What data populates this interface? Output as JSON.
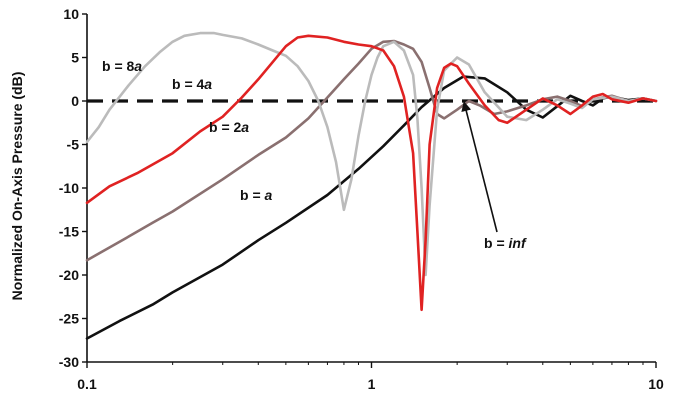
{
  "chart_data": {
    "type": "line",
    "title": "",
    "xlabel": "",
    "ylabel": "Normalized On-Axis Pressure (dB)",
    "x_scale": "log",
    "xlim": [
      0.1,
      10
    ],
    "ylim": [
      -30,
      10
    ],
    "x_ticks": [
      0.1,
      1,
      10
    ],
    "x_tick_labels": [
      "0.1",
      "1",
      "10"
    ],
    "y_ticks": [
      10,
      5,
      0,
      -5,
      -10,
      -15,
      -20,
      -25,
      -30
    ],
    "y_tick_labels": [
      "10",
      "5",
      "0",
      "-5",
      "-10",
      "-15",
      "-20",
      "-25",
      "-30"
    ],
    "grid": false,
    "legend": "none",
    "series": [
      {
        "label_parts": [
          "b = ",
          "a"
        ],
        "color": "#111111",
        "dashed": false,
        "x": [
          0.1,
          0.13,
          0.17,
          0.2,
          0.3,
          0.4,
          0.5,
          0.7,
          0.9,
          1.1,
          1.3,
          1.5,
          1.8,
          2.1,
          2.5,
          3.0,
          3.5,
          4.0,
          4.5,
          5.0,
          5.5,
          6.0,
          6.5,
          7.0,
          8.0,
          9.0,
          10.0
        ],
        "y": [
          -27.3,
          -25.3,
          -23.4,
          -22.0,
          -18.8,
          -16.0,
          -14.0,
          -10.8,
          -7.8,
          -5.2,
          -2.8,
          -0.7,
          1.5,
          2.8,
          2.6,
          1.0,
          -1.0,
          -1.9,
          -0.6,
          0.6,
          0.0,
          -0.5,
          0.3,
          0.5,
          0.1,
          0.3,
          0.0
        ]
      },
      {
        "label_parts": [
          "b = 2",
          "a"
        ],
        "color": "#8a7070",
        "dashed": false,
        "x": [
          0.1,
          0.13,
          0.17,
          0.2,
          0.3,
          0.4,
          0.5,
          0.6,
          0.7,
          0.8,
          0.9,
          1.0,
          1.1,
          1.2,
          1.3,
          1.4,
          1.5,
          1.6,
          1.7,
          1.8,
          2.0,
          2.2,
          2.4,
          2.7,
          3.0,
          3.5,
          4.0,
          4.5,
          5.0,
          5.5,
          6.0,
          7.0,
          8.0,
          9.0,
          10.0
        ],
        "y": [
          -18.3,
          -16.2,
          -14.0,
          -12.7,
          -9.0,
          -6.2,
          -4.2,
          -2.0,
          0.4,
          2.5,
          4.3,
          6.0,
          6.8,
          6.9,
          6.5,
          6.0,
          4.5,
          1.5,
          -1.5,
          -2.0,
          -1.0,
          0.0,
          -0.5,
          -1.5,
          -1.2,
          -0.5,
          0.2,
          0.5,
          0.0,
          -0.6,
          0.2,
          0.6,
          0.0,
          0.3,
          0.0
        ]
      },
      {
        "label_parts": [
          "b = 4",
          "a"
        ],
        "color": "#e02222",
        "dashed": false,
        "x": [
          0.1,
          0.12,
          0.15,
          0.2,
          0.25,
          0.3,
          0.35,
          0.4,
          0.45,
          0.5,
          0.55,
          0.6,
          0.7,
          0.8,
          0.9,
          1.0,
          1.1,
          1.2,
          1.3,
          1.4,
          1.45,
          1.5,
          1.55,
          1.6,
          1.7,
          1.8,
          1.9,
          2.0,
          2.2,
          2.5,
          2.8,
          3.0,
          3.5,
          4.0,
          4.5,
          5.0,
          5.5,
          6.0,
          6.5,
          7.0,
          8.0,
          9.0,
          10.0
        ],
        "y": [
          -11.7,
          -9.8,
          -8.3,
          -6.0,
          -3.5,
          -1.8,
          0.4,
          2.5,
          4.5,
          6.3,
          7.3,
          7.5,
          7.3,
          6.8,
          6.5,
          6.3,
          5.8,
          4.0,
          0.5,
          -6.0,
          -15.0,
          -24.0,
          -16.0,
          -5.0,
          1.5,
          3.8,
          4.3,
          4.0,
          2.0,
          -0.5,
          -2.2,
          -2.5,
          -1.0,
          0.3,
          -0.5,
          -1.5,
          -0.5,
          0.5,
          0.8,
          0.2,
          -0.2,
          0.3,
          0.0
        ]
      },
      {
        "label_parts": [
          "b = 8",
          "a"
        ],
        "color": "#bbbbbb",
        "dashed": false,
        "x": [
          0.1,
          0.11,
          0.12,
          0.14,
          0.16,
          0.18,
          0.2,
          0.22,
          0.25,
          0.28,
          0.3,
          0.35,
          0.4,
          0.45,
          0.5,
          0.55,
          0.6,
          0.65,
          0.7,
          0.75,
          0.8,
          0.85,
          0.9,
          0.95,
          1.0,
          1.05,
          1.1,
          1.2,
          1.3,
          1.4,
          1.45,
          1.5,
          1.55,
          1.6,
          1.7,
          1.8,
          2.0,
          2.2,
          2.5,
          3.0,
          3.5,
          4.0,
          4.5,
          5.0,
          5.5,
          6.0,
          7.0,
          8.0,
          9.0,
          10.0
        ],
        "y": [
          -4.7,
          -3.0,
          -1.0,
          1.8,
          4.0,
          5.6,
          6.8,
          7.5,
          7.8,
          7.8,
          7.6,
          7.2,
          6.5,
          5.8,
          5.2,
          4.0,
          2.3,
          0.0,
          -3.0,
          -7.0,
          -12.5,
          -9.0,
          -4.0,
          0.0,
          3.0,
          5.0,
          6.3,
          6.8,
          5.8,
          3.0,
          -2.0,
          -10.0,
          -20.0,
          -12.0,
          -1.0,
          3.5,
          5.0,
          4.2,
          1.0,
          -1.8,
          -2.2,
          -1.0,
          0.2,
          -0.3,
          -0.8,
          0.2,
          0.5,
          0.0,
          0.3,
          0.0
        ]
      },
      {
        "label_parts": [
          "b = ",
          "inf"
        ],
        "color": "#111111",
        "dashed": true,
        "x": [
          0.1,
          10.0
        ],
        "y": [
          0.0,
          0.0
        ]
      }
    ],
    "annotations": [
      {
        "text_parts": [
          "b = 8",
          "a"
        ]
      },
      {
        "text_parts": [
          "b = 4",
          "a"
        ]
      },
      {
        "text_parts": [
          "b = 2",
          "a"
        ]
      },
      {
        "text_parts": [
          "b = ",
          "a"
        ]
      },
      {
        "text_parts": [
          "b = ",
          "inf"
        ]
      }
    ]
  }
}
